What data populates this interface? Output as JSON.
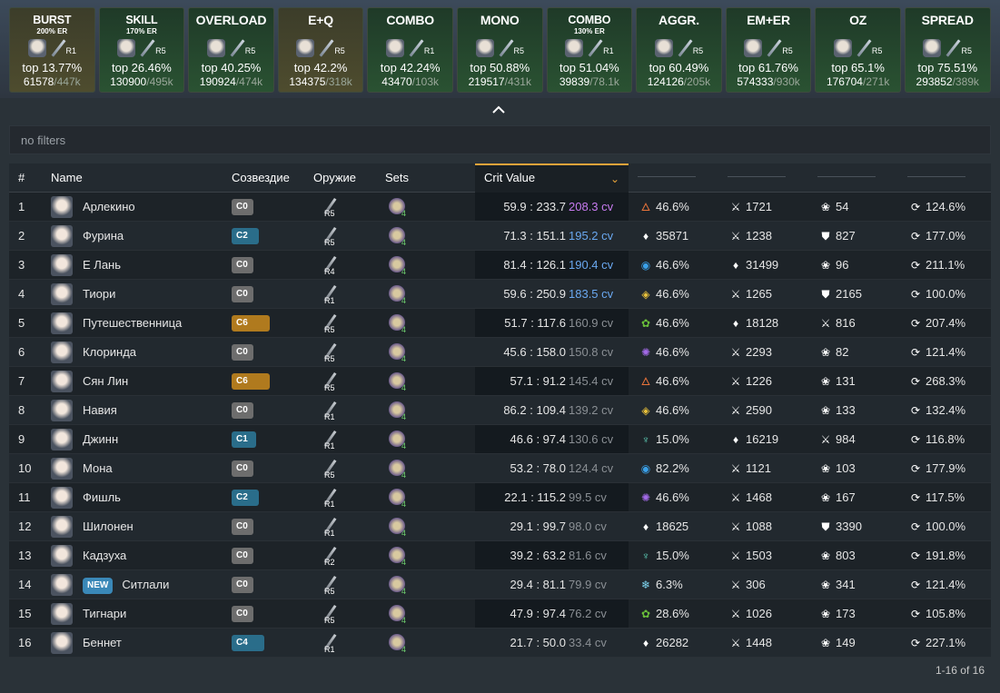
{
  "top_cards": [
    {
      "name": "BURST",
      "sub": "200% ER",
      "rank": "R1",
      "top": "top 13.77%",
      "count": "61578",
      "total": "/447k",
      "style": "b"
    },
    {
      "name": "SKILL",
      "sub": "170% ER",
      "rank": "R5",
      "top": "top 26.46%",
      "count": "130900",
      "total": "/495k",
      "style": "g"
    },
    {
      "name": "OVERLOAD",
      "sub": "",
      "rank": "R5",
      "top": "top 40.25%",
      "count": "190924",
      "total": "/474k",
      "style": "g"
    },
    {
      "name": "E+Q",
      "sub": "",
      "rank": "R5",
      "top": "top 42.2%",
      "count": "134375",
      "total": "/318k",
      "style": "b"
    },
    {
      "name": "COMBO",
      "sub": "",
      "rank": "R1",
      "top": "top 42.24%",
      "count": "43470",
      "total": "/103k",
      "style": "g"
    },
    {
      "name": "MONO",
      "sub": "",
      "rank": "R5",
      "top": "top 50.88%",
      "count": "219517",
      "total": "/431k",
      "style": "g"
    },
    {
      "name": "COMBO",
      "sub": "130% ER",
      "rank": "R1",
      "top": "top 51.04%",
      "count": "39839",
      "total": "/78.1k",
      "style": "g"
    },
    {
      "name": "AGGR.",
      "sub": "",
      "rank": "R5",
      "top": "top 60.49%",
      "count": "124126",
      "total": "/205k",
      "style": "g"
    },
    {
      "name": "EM+ER",
      "sub": "",
      "rank": "R5",
      "top": "top 61.76%",
      "count": "574333",
      "total": "/930k",
      "style": "g"
    },
    {
      "name": "OZ",
      "sub": "",
      "rank": "R5",
      "top": "top 65.1%",
      "count": "176704",
      "total": "/271k",
      "style": "g"
    },
    {
      "name": "SPREAD",
      "sub": "",
      "rank": "R5",
      "top": "top 75.51%",
      "count": "293852",
      "total": "/389k",
      "style": "g"
    }
  ],
  "filter": {
    "text": "no filters"
  },
  "headers": {
    "num": "#",
    "name": "Name",
    "constellation": "Созвездие",
    "weapon": "Оружие",
    "sets": "Sets",
    "crit": "Crit Value"
  },
  "badge_new": "NEW",
  "rows": [
    {
      "n": "1",
      "name": "Арлекино",
      "cons": "C0",
      "cc": "c0",
      "wr": "R5",
      "sets": "4",
      "crit": "59.9 : 233.7",
      "cv": "208.3 cv",
      "cvc": "#c77bf0",
      "s1i": "🜂",
      "s1c": "#e8733a",
      "s1": "46.6%",
      "s2i": "⚔",
      "s2c": "#fff",
      "s2": "1721",
      "s3i": "❀",
      "s3c": "#fff",
      "s3": "54",
      "s4": "124.6%"
    },
    {
      "n": "2",
      "name": "Фурина",
      "cons": "C2",
      "cc": "c2",
      "wr": "R5",
      "sets": "4",
      "crit": "71.3 : 151.1",
      "cv": "195.2 cv",
      "cvc": "#6aa8f0",
      "s1i": "♦",
      "s1c": "#fff",
      "s1": "35871",
      "s2i": "⚔",
      "s2c": "#fff",
      "s2": "1238",
      "s3i": "⛊",
      "s3c": "#fff",
      "s3": "827",
      "s4": "177.0%"
    },
    {
      "n": "3",
      "name": "Е Лань",
      "cons": "C0",
      "cc": "c0",
      "wr": "R4",
      "sets": "4",
      "crit": "81.4 : 126.1",
      "cv": "190.4 cv",
      "cvc": "#6aa8f0",
      "s1i": "◉",
      "s1c": "#3aa0e8",
      "s1": "46.6%",
      "s2i": "♦",
      "s2c": "#fff",
      "s2": "31499",
      "s3i": "❀",
      "s3c": "#fff",
      "s3": "96",
      "s4": "211.1%"
    },
    {
      "n": "4",
      "name": "Тиори",
      "cons": "C0",
      "cc": "c0",
      "wr": "R1",
      "sets": "4",
      "crit": "59.6 : 250.9",
      "cv": "183.5 cv",
      "cvc": "#6aa8f0",
      "s1i": "◈",
      "s1c": "#e8c03a",
      "s1": "46.6%",
      "s2i": "⚔",
      "s2c": "#fff",
      "s2": "1265",
      "s3i": "⛊",
      "s3c": "#fff",
      "s3": "2165",
      "s4": "100.0%"
    },
    {
      "n": "5",
      "name": "Путешественница",
      "cons": "C6",
      "cc": "c6",
      "wr": "R5",
      "sets": "4",
      "crit": "51.7 : 117.6",
      "cv": "160.9 cv",
      "cvc": "#8a8f94",
      "s1i": "✿",
      "s1c": "#6abf3a",
      "s1": "46.6%",
      "s2i": "♦",
      "s2c": "#fff",
      "s2": "18128",
      "s3i": "⚔",
      "s3c": "#fff",
      "s3": "816",
      "s4": "207.4%"
    },
    {
      "n": "6",
      "name": "Клоринда",
      "cons": "C0",
      "cc": "c0",
      "wr": "R5",
      "sets": "4",
      "crit": "45.6 : 158.0",
      "cv": "150.8 cv",
      "cvc": "#8a8f94",
      "s1i": "✺",
      "s1c": "#a36ae8",
      "s1": "46.6%",
      "s2i": "⚔",
      "s2c": "#fff",
      "s2": "2293",
      "s3i": "❀",
      "s3c": "#fff",
      "s3": "82",
      "s4": "121.4%"
    },
    {
      "n": "7",
      "name": "Сян Лин",
      "cons": "C6",
      "cc": "c6",
      "wr": "R5",
      "sets": "4",
      "crit": "57.1 : 91.2",
      "cv": "145.4 cv",
      "cvc": "#8a8f94",
      "s1i": "🜂",
      "s1c": "#e8733a",
      "s1": "46.6%",
      "s2i": "⚔",
      "s2c": "#fff",
      "s2": "1226",
      "s3i": "❀",
      "s3c": "#fff",
      "s3": "131",
      "s4": "268.3%"
    },
    {
      "n": "8",
      "name": "Навия",
      "cons": "C0",
      "cc": "c0",
      "wr": "R1",
      "sets": "4",
      "crit": "86.2 : 109.4",
      "cv": "139.2 cv",
      "cvc": "#8a8f94",
      "s1i": "◈",
      "s1c": "#e8c03a",
      "s1": "46.6%",
      "s2i": "⚔",
      "s2c": "#fff",
      "s2": "2590",
      "s3i": "❀",
      "s3c": "#fff",
      "s3": "133",
      "s4": "132.4%"
    },
    {
      "n": "9",
      "name": "Джинн",
      "cons": "C1",
      "cc": "c1",
      "wr": "R1",
      "sets": "4",
      "crit": "46.6 : 97.4",
      "cv": "130.6 cv",
      "cvc": "#8a8f94",
      "s1i": "♆",
      "s1c": "#5fd0b8",
      "s1": "15.0%",
      "s2i": "♦",
      "s2c": "#fff",
      "s2": "16219",
      "s3i": "⚔",
      "s3c": "#fff",
      "s3": "984",
      "s4": "116.8%"
    },
    {
      "n": "10",
      "name": "Мона",
      "cons": "C0",
      "cc": "c0",
      "wr": "R5",
      "sets": "4",
      "crit": "53.2 : 78.0",
      "cv": "124.4 cv",
      "cvc": "#8a8f94",
      "s1i": "◉",
      "s1c": "#3aa0e8",
      "s1": "82.2%",
      "s2i": "⚔",
      "s2c": "#fff",
      "s2": "1121",
      "s3i": "❀",
      "s3c": "#fff",
      "s3": "103",
      "s4": "177.9%"
    },
    {
      "n": "11",
      "name": "Фишль",
      "cons": "C2",
      "cc": "c2",
      "wr": "R1",
      "sets": "4",
      "crit": "22.1 : 115.2",
      "cv": "99.5 cv",
      "cvc": "#8a8f94",
      "s1i": "✺",
      "s1c": "#a36ae8",
      "s1": "46.6%",
      "s2i": "⚔",
      "s2c": "#fff",
      "s2": "1468",
      "s3i": "❀",
      "s3c": "#fff",
      "s3": "167",
      "s4": "117.5%"
    },
    {
      "n": "12",
      "name": "Шилонен",
      "cons": "C0",
      "cc": "c0",
      "wr": "R1",
      "sets": "4",
      "crit": "29.1 : 99.7",
      "cv": "98.0 cv",
      "cvc": "#8a8f94",
      "s1i": "♦",
      "s1c": "#fff",
      "s1": "18625",
      "s2i": "⚔",
      "s2c": "#fff",
      "s2": "1088",
      "s3i": "⛊",
      "s3c": "#fff",
      "s3": "3390",
      "s4": "100.0%"
    },
    {
      "n": "13",
      "name": "Кадзуха",
      "cons": "C0",
      "cc": "c0",
      "wr": "R2",
      "sets": "4",
      "crit": "39.2 : 63.2",
      "cv": "81.6 cv",
      "cvc": "#8a8f94",
      "s1i": "♆",
      "s1c": "#5fd0b8",
      "s1": "15.0%",
      "s2i": "⚔",
      "s2c": "#fff",
      "s2": "1503",
      "s3i": "❀",
      "s3c": "#fff",
      "s3": "803",
      "s4": "191.8%"
    },
    {
      "n": "14",
      "name": "Ситлали",
      "isNew": true,
      "cons": "C0",
      "cc": "c0",
      "wr": "R5",
      "sets": "4",
      "crit": "29.4 : 81.1",
      "cv": "79.9 cv",
      "cvc": "#8a8f94",
      "s1i": "❄",
      "s1c": "#7fd6f0",
      "s1": "6.3%",
      "s2i": "⚔",
      "s2c": "#fff",
      "s2": "306",
      "s3i": "❀",
      "s3c": "#fff",
      "s3": "341",
      "s4": "121.4%"
    },
    {
      "n": "15",
      "name": "Тигнари",
      "cons": "C0",
      "cc": "c0",
      "wr": "R5",
      "sets": "4",
      "crit": "47.9 : 97.4",
      "cv": "76.2 cv",
      "cvc": "#8a8f94",
      "s1i": "✿",
      "s1c": "#6abf3a",
      "s1": "28.6%",
      "s2i": "⚔",
      "s2c": "#fff",
      "s2": "1026",
      "s3i": "❀",
      "s3c": "#fff",
      "s3": "173",
      "s4": "105.8%"
    },
    {
      "n": "16",
      "name": "Беннет",
      "cons": "C4",
      "cc": "c4",
      "wr": "R1",
      "sets": "4",
      "crit": "21.7 : 50.0",
      "cv": "33.4 cv",
      "cvc": "#8a8f94",
      "s1i": "♦",
      "s1c": "#fff",
      "s1": "26282",
      "s2i": "⚔",
      "s2c": "#fff",
      "s2": "1448",
      "s3i": "❀",
      "s3c": "#fff",
      "s3": "149",
      "s4": "227.1%"
    }
  ],
  "pager": "1-16 of 16",
  "colors": {
    "accent": "#e8a33a",
    "cons_gray": "#6d6d6d",
    "cons_blue": "#2a6d8a",
    "cons_gold": "#b07a1e"
  }
}
